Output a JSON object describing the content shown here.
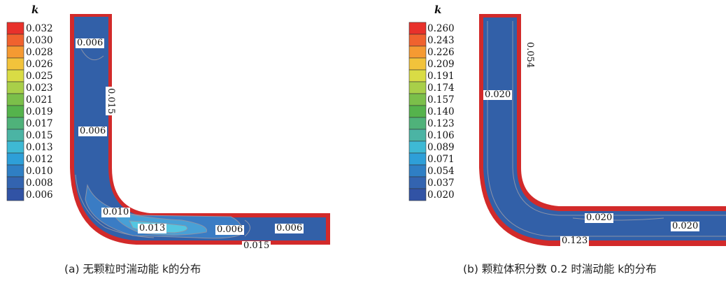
{
  "panels": [
    {
      "legend": {
        "title": "k",
        "colors": [
          "#e8312b",
          "#f0622e",
          "#f59a32",
          "#f2c33b",
          "#d9dc45",
          "#a9cf49",
          "#7bbf4a",
          "#55b34c",
          "#4fb27a",
          "#4bb4a4",
          "#3eb9d4",
          "#2e9fd8",
          "#2f7fc4",
          "#3364b0",
          "#3153a5"
        ],
        "ticks": [
          "0.032",
          "0.030",
          "0.028",
          "0.026",
          "0.025",
          "0.023",
          "0.021",
          "0.019",
          "0.017",
          "0.015",
          "0.013",
          "0.012",
          "0.010",
          "0.008",
          "0.006"
        ]
      },
      "contour_labels": [
        "0.006",
        "0.015",
        "0.006",
        "0.010",
        "0.013",
        "0.006",
        "0.006",
        "0.015"
      ],
      "caption": "(a) 无颗粒时湍动能 k的分布"
    },
    {
      "legend": {
        "title": "k",
        "colors": [
          "#e8312b",
          "#f0622e",
          "#f59a32",
          "#f2c33b",
          "#d9dc45",
          "#a9cf49",
          "#7bbf4a",
          "#55b34c",
          "#4fb27a",
          "#4bb4a4",
          "#3eb9d4",
          "#2e9fd8",
          "#2f7fc4",
          "#3364b0",
          "#3153a5"
        ],
        "ticks": [
          "0.260",
          "0.243",
          "0.226",
          "0.209",
          "0.191",
          "0.174",
          "0.157",
          "0.140",
          "0.123",
          "0.106",
          "0.089",
          "0.071",
          "0.054",
          "0.037",
          "0.020"
        ]
      },
      "contour_labels": [
        "0.054",
        "0.020",
        "0.020",
        "0.020",
        "0.123"
      ],
      "caption": "(b) 颗粒体积分数 0.2 时湍动能 k的分布"
    }
  ],
  "colors": {
    "pipe_fill": "#3260a8",
    "pipe_wall": "#d22a2a",
    "contour_line": "#8b93a8",
    "hot_core": "#55c6e0"
  }
}
